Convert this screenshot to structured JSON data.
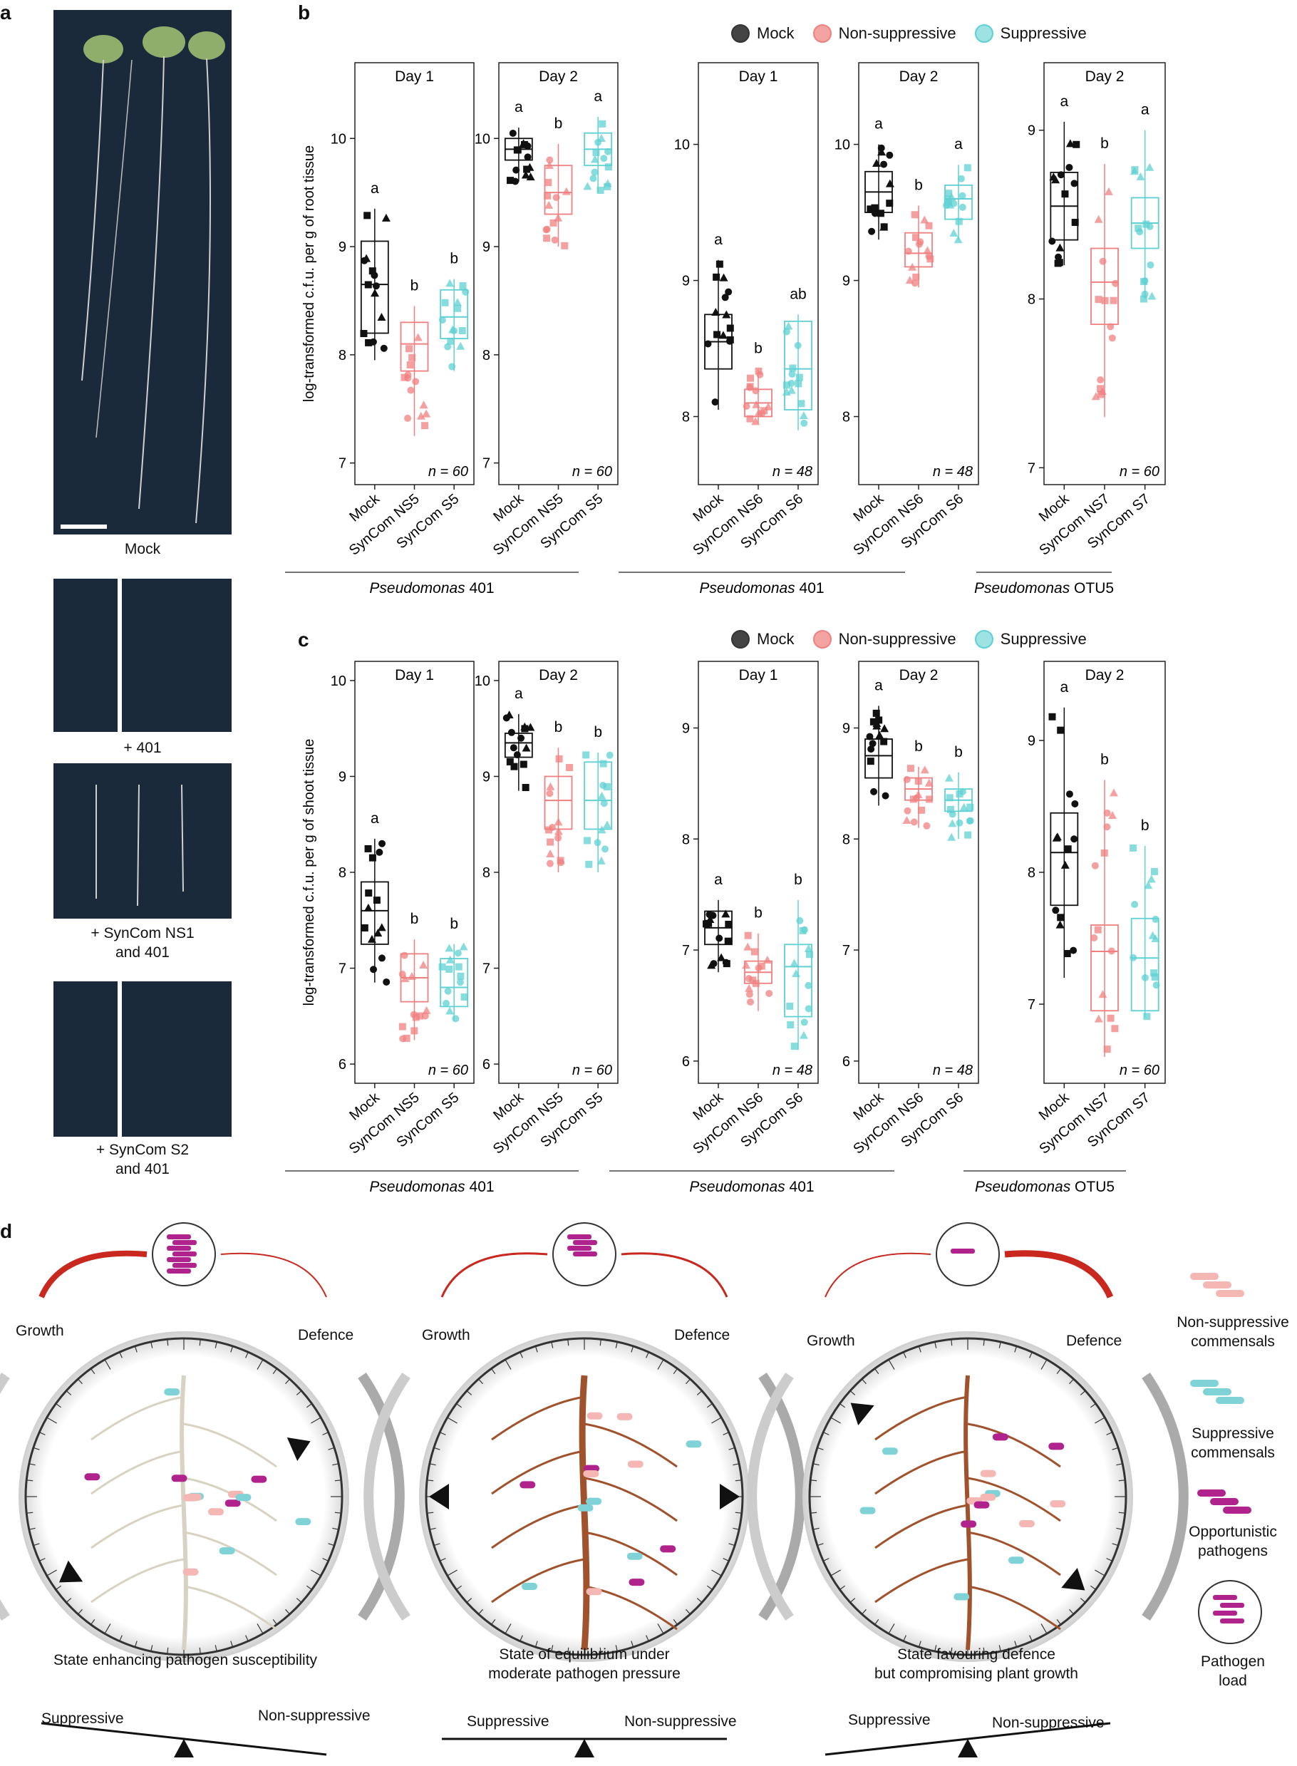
{
  "panel_a": {
    "letter": "a",
    "captions": [
      "Mock",
      "+ 401",
      "+ SynCom NS1\nand 401",
      "+ SynCom S2\nand 401"
    ]
  },
  "panel_b": {
    "letter": "b",
    "ylabel": "log-transformed c.f.u. per g of root tissue"
  },
  "panel_c": {
    "letter": "c",
    "ylabel": "log-transformed c.f.u. per g of shoot tissue"
  },
  "legend": {
    "items": [
      {
        "label": "Mock",
        "color": "#111111"
      },
      {
        "label": "Non-suppressive",
        "color": "#f08080"
      },
      {
        "label": "Suppressive",
        "color": "#5fd0d3"
      }
    ]
  },
  "groups": [
    {
      "label": "Pseudomonas 401",
      "italic": "Pseudomonas",
      "rest": " 401"
    },
    {
      "label": "Pseudomonas 401",
      "italic": "Pseudomonas",
      "rest": " 401"
    },
    {
      "label": "Pseudomonas OTU5",
      "italic": "Pseudomonas",
      "rest": " OTU5"
    }
  ],
  "chart_data": [
    {
      "type": "box",
      "panel": "b",
      "title": "Day 1",
      "ylim": [
        6.8,
        10.7
      ],
      "yticks": [
        7,
        8,
        9,
        10
      ],
      "n": "n = 60",
      "categories": [
        "Mock",
        "SynCom NS5",
        "SynCom S5"
      ],
      "boxes": [
        {
          "q1": 8.2,
          "median": 8.65,
          "q3": 9.05,
          "min": 7.95,
          "max": 9.35,
          "letter": "a"
        },
        {
          "q1": 7.85,
          "median": 8.1,
          "q3": 8.3,
          "min": 7.25,
          "max": 8.45,
          "letter": "b"
        },
        {
          "q1": 8.15,
          "median": 8.35,
          "q3": 8.6,
          "min": 7.85,
          "max": 8.7,
          "letter": "b"
        }
      ]
    },
    {
      "type": "box",
      "panel": "b",
      "title": "Day 2",
      "ylim": [
        6.8,
        10.7
      ],
      "yticks": [
        7,
        8,
        9,
        10
      ],
      "n": "n = 60",
      "categories": [
        "Mock",
        "SynCom NS5",
        "SynCom S5"
      ],
      "boxes": [
        {
          "q1": 9.8,
          "median": 9.9,
          "q3": 10.0,
          "min": 9.6,
          "max": 10.1,
          "letter": "a"
        },
        {
          "q1": 9.3,
          "median": 9.5,
          "q3": 9.75,
          "min": 9.0,
          "max": 9.95,
          "letter": "b"
        },
        {
          "q1": 9.75,
          "median": 9.9,
          "q3": 10.05,
          "min": 9.5,
          "max": 10.2,
          "letter": "a"
        }
      ]
    },
    {
      "type": "box",
      "panel": "b",
      "title": "Day 1",
      "ylim": [
        7.5,
        10.6
      ],
      "yticks": [
        8,
        9,
        10
      ],
      "n": "n = 48",
      "categories": [
        "Mock",
        "SynCom NS6",
        "SynCom S6"
      ],
      "boxes": [
        {
          "q1": 8.35,
          "median": 8.55,
          "q3": 8.75,
          "min": 8.05,
          "max": 9.15,
          "letter": "a"
        },
        {
          "q1": 8.0,
          "median": 8.1,
          "q3": 8.2,
          "min": 7.95,
          "max": 8.35,
          "letter": "b"
        },
        {
          "q1": 8.05,
          "median": 8.35,
          "q3": 8.7,
          "min": 7.9,
          "max": 8.75,
          "letter": "ab"
        }
      ]
    },
    {
      "type": "box",
      "panel": "b",
      "title": "Day 2",
      "ylim": [
        7.5,
        10.6
      ],
      "yticks": [
        8,
        9,
        10
      ],
      "n": "n = 48",
      "categories": [
        "Mock",
        "SynCom NS6",
        "SynCom S6"
      ],
      "boxes": [
        {
          "q1": 9.5,
          "median": 9.65,
          "q3": 9.8,
          "min": 9.3,
          "max": 10.0,
          "letter": "a"
        },
        {
          "q1": 9.1,
          "median": 9.2,
          "q3": 9.35,
          "min": 8.95,
          "max": 9.55,
          "letter": "b"
        },
        {
          "q1": 9.45,
          "median": 9.6,
          "q3": 9.7,
          "min": 9.3,
          "max": 9.85,
          "letter": "a"
        }
      ]
    },
    {
      "type": "box",
      "panel": "b",
      "title": "Day 2",
      "ylim": [
        6.9,
        9.4
      ],
      "yticks": [
        7,
        8,
        9
      ],
      "n": "n = 60",
      "categories": [
        "Mock",
        "SynCom NS7",
        "SynCom S7"
      ],
      "boxes": [
        {
          "q1": 8.35,
          "median": 8.55,
          "q3": 8.75,
          "min": 8.2,
          "max": 9.05,
          "letter": "a"
        },
        {
          "q1": 7.85,
          "median": 8.1,
          "q3": 8.3,
          "min": 7.3,
          "max": 8.8,
          "letter": "b"
        },
        {
          "q1": 8.3,
          "median": 8.45,
          "q3": 8.6,
          "min": 8.0,
          "max": 9.0,
          "letter": "a"
        }
      ]
    },
    {
      "type": "box",
      "panel": "c",
      "title": "Day 1",
      "ylim": [
        5.8,
        10.2
      ],
      "yticks": [
        6,
        7,
        8,
        9,
        10
      ],
      "n": "n = 60",
      "categories": [
        "Mock",
        "SynCom NS5",
        "SynCom S5"
      ],
      "boxes": [
        {
          "q1": 7.25,
          "median": 7.6,
          "q3": 7.9,
          "min": 6.85,
          "max": 8.35,
          "letter": "a"
        },
        {
          "q1": 6.65,
          "median": 6.9,
          "q3": 7.15,
          "min": 6.25,
          "max": 7.3,
          "letter": "b"
        },
        {
          "q1": 6.6,
          "median": 6.8,
          "q3": 7.1,
          "min": 6.45,
          "max": 7.25,
          "letter": "b"
        }
      ]
    },
    {
      "type": "box",
      "panel": "c",
      "title": "Day 2",
      "ylim": [
        5.8,
        10.2
      ],
      "yticks": [
        6,
        7,
        8,
        9,
        10
      ],
      "n": "n = 60",
      "categories": [
        "Mock",
        "SynCom NS5",
        "SynCom S5"
      ],
      "boxes": [
        {
          "q1": 9.2,
          "median": 9.35,
          "q3": 9.45,
          "min": 8.85,
          "max": 9.65,
          "letter": "a"
        },
        {
          "q1": 8.45,
          "median": 8.75,
          "q3": 9.0,
          "min": 8.0,
          "max": 9.3,
          "letter": "b"
        },
        {
          "q1": 8.45,
          "median": 8.75,
          "q3": 9.15,
          "min": 8.0,
          "max": 9.25,
          "letter": "b"
        }
      ]
    },
    {
      "type": "box",
      "panel": "c",
      "title": "Day 1",
      "ylim": [
        5.8,
        9.6
      ],
      "yticks": [
        6,
        7,
        8,
        9
      ],
      "n": "n = 48",
      "categories": [
        "Mock",
        "SynCom NS6",
        "SynCom S6"
      ],
      "boxes": [
        {
          "q1": 7.05,
          "median": 7.2,
          "q3": 7.35,
          "min": 6.8,
          "max": 7.45,
          "letter": "a"
        },
        {
          "q1": 6.7,
          "median": 6.8,
          "q3": 6.9,
          "min": 6.45,
          "max": 7.15,
          "letter": "b"
        },
        {
          "q1": 6.4,
          "median": 6.85,
          "q3": 7.05,
          "min": 6.1,
          "max": 7.45,
          "letter": "b"
        }
      ]
    },
    {
      "type": "box",
      "panel": "c",
      "title": "Day 2",
      "ylim": [
        5.8,
        9.6
      ],
      "yticks": [
        6,
        7,
        8,
        9
      ],
      "n": "n = 48",
      "categories": [
        "Mock",
        "SynCom NS6",
        "SynCom S6"
      ],
      "boxes": [
        {
          "q1": 8.55,
          "median": 8.75,
          "q3": 8.9,
          "min": 8.3,
          "max": 9.2,
          "letter": "a"
        },
        {
          "q1": 8.35,
          "median": 8.45,
          "q3": 8.55,
          "min": 8.1,
          "max": 8.65,
          "letter": "b"
        },
        {
          "q1": 8.25,
          "median": 8.35,
          "q3": 8.45,
          "min": 8.0,
          "max": 8.6,
          "letter": "b"
        }
      ]
    },
    {
      "type": "box",
      "panel": "c",
      "title": "Day 2",
      "ylim": [
        6.4,
        9.6
      ],
      "yticks": [
        7,
        8,
        9
      ],
      "n": "n = 60",
      "categories": [
        "Mock",
        "SynCom NS7",
        "SynCom S7"
      ],
      "boxes": [
        {
          "q1": 7.75,
          "median": 8.15,
          "q3": 8.45,
          "min": 7.2,
          "max": 9.25,
          "letter": "a"
        },
        {
          "q1": 6.95,
          "median": 7.4,
          "q3": 7.6,
          "min": 6.6,
          "max": 8.7,
          "letter": "b"
        },
        {
          "q1": 6.95,
          "median": 7.35,
          "q3": 7.65,
          "min": 6.9,
          "max": 8.2,
          "letter": "b"
        }
      ]
    }
  ],
  "panel_d": {
    "letter": "d",
    "scenes": [
      {
        "left": "Growth",
        "right": "Defence",
        "state": "State enhancing pathogen susceptibility",
        "bal_left": "Suppressive",
        "bal_right": "Non-suppressive"
      },
      {
        "left": "Growth",
        "right": "Defence",
        "state": "State of equilibrium under\nmoderate pathogen pressure",
        "bal_left": "Suppressive",
        "bal_right": "Non-suppressive"
      },
      {
        "left": "Growth",
        "right": "Defence",
        "state": "State favouring defence\nbut compromising plant growth",
        "bal_left": "Suppressive",
        "bal_right": "Non-suppressive"
      }
    ],
    "legend": [
      "Non-suppressive\ncommensals",
      "Suppressive\ncommensals",
      "Opportunistic\npathogens",
      "Pathogen\nload"
    ]
  }
}
